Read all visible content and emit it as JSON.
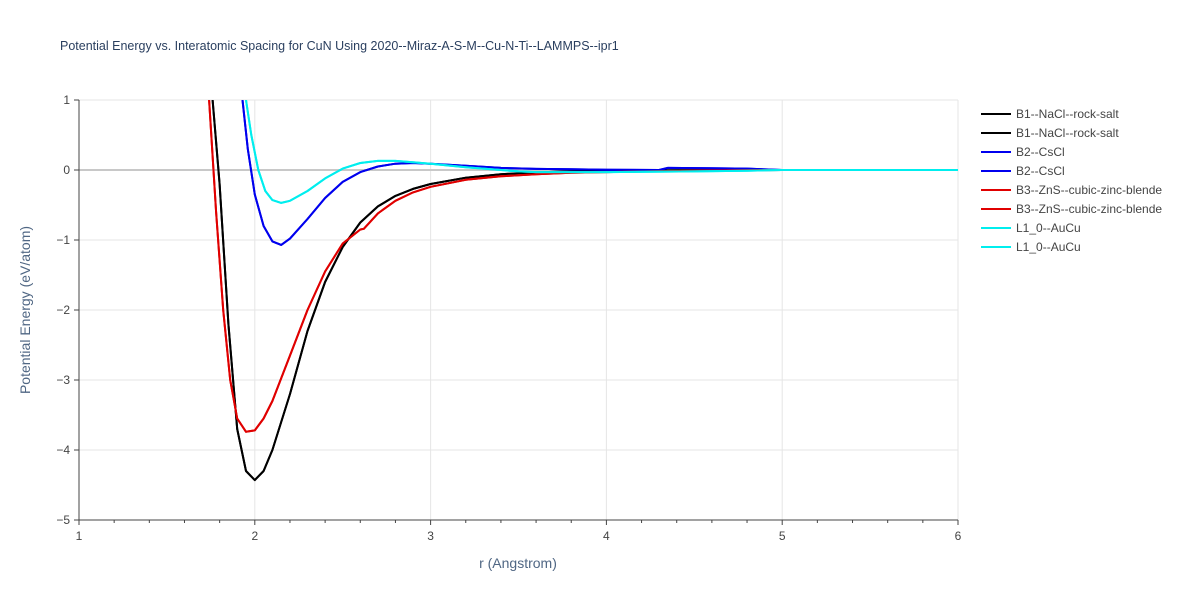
{
  "chart_data": {
    "type": "line",
    "title": "Potential Energy vs. Interatomic Spacing for CuN Using 2020--Miraz-A-S-M--Cu-N-Ti--LAMMPS--ipr1",
    "xlabel": "r (Angstrom)",
    "ylabel": "Potential Energy (eV/atom)",
    "xlim": [
      1,
      6
    ],
    "ylim": [
      -5,
      1
    ],
    "xticks": [
      1,
      2,
      3,
      4,
      5,
      6
    ],
    "xtick_labels": [
      "1",
      "2",
      "3",
      "4",
      "5",
      "6"
    ],
    "yticks": [
      -5,
      -4,
      -3,
      -2,
      -1,
      0,
      1
    ],
    "ytick_labels": [
      "−5",
      "−4",
      "−3",
      "−2",
      "−1",
      "0",
      "1"
    ],
    "grid": true,
    "legend_position": "right",
    "series": [
      {
        "name": "B1--NaCl--rock-salt",
        "color": "#000000",
        "x": [
          1.76,
          1.8,
          1.85,
          1.9,
          1.95,
          2.0,
          2.05,
          2.1,
          2.15,
          2.2,
          2.3,
          2.4,
          2.5,
          2.6,
          2.7,
          2.8,
          2.9,
          3.0,
          3.2,
          3.4,
          3.6,
          3.8,
          4.0,
          4.2,
          4.5,
          4.8,
          5.0
        ],
        "y": [
          1.0,
          -0.2,
          -2.2,
          -3.7,
          -4.3,
          -4.43,
          -4.3,
          -4.0,
          -3.6,
          -3.2,
          -2.3,
          -1.6,
          -1.1,
          -0.75,
          -0.52,
          -0.37,
          -0.27,
          -0.2,
          -0.11,
          -0.06,
          -0.035,
          -0.02,
          -0.012,
          -0.007,
          -0.003,
          -0.001,
          0.0
        ]
      },
      {
        "name": "B1--NaCl--rock-salt",
        "color": "#000000",
        "x": [
          1.76,
          1.8,
          1.85,
          1.9,
          1.95,
          2.0,
          2.05,
          2.1,
          2.15,
          2.2,
          2.3,
          2.4,
          2.5,
          2.6,
          2.7,
          2.8,
          2.9,
          3.0,
          3.2,
          3.4,
          3.6,
          3.8,
          4.0,
          4.2,
          4.5,
          4.8,
          5.0
        ],
        "y": [
          1.0,
          -0.2,
          -2.2,
          -3.7,
          -4.3,
          -4.43,
          -4.3,
          -4.0,
          -3.6,
          -3.2,
          -2.3,
          -1.6,
          -1.1,
          -0.75,
          -0.52,
          -0.37,
          -0.27,
          -0.2,
          -0.11,
          -0.06,
          -0.035,
          -0.02,
          -0.012,
          -0.007,
          -0.003,
          -0.001,
          0.0
        ]
      },
      {
        "name": "B2--CsCl",
        "color": "#0000ee",
        "x": [
          1.93,
          1.96,
          2.0,
          2.05,
          2.1,
          2.15,
          2.2,
          2.3,
          2.4,
          2.5,
          2.6,
          2.7,
          2.8,
          2.9,
          3.0,
          3.2,
          3.4,
          3.6,
          3.8,
          4.0,
          4.3,
          4.35,
          4.6,
          4.8,
          5.0
        ],
        "y": [
          1.0,
          0.3,
          -0.35,
          -0.8,
          -1.02,
          -1.07,
          -0.98,
          -0.7,
          -0.4,
          -0.17,
          -0.03,
          0.05,
          0.09,
          0.1,
          0.09,
          0.06,
          0.03,
          0.015,
          0.01,
          0.005,
          0.0,
          0.03,
          0.025,
          0.02,
          0.0
        ]
      },
      {
        "name": "B2--CsCl",
        "color": "#0000ee",
        "x": [
          1.93,
          1.96,
          2.0,
          2.05,
          2.1,
          2.15,
          2.2,
          2.3,
          2.4,
          2.5,
          2.6,
          2.7,
          2.8,
          2.9,
          3.0,
          3.2,
          3.4,
          3.6,
          3.8,
          4.0,
          4.3,
          4.35,
          4.6,
          4.8,
          5.0
        ],
        "y": [
          1.0,
          0.3,
          -0.35,
          -0.8,
          -1.02,
          -1.07,
          -0.98,
          -0.7,
          -0.4,
          -0.17,
          -0.03,
          0.05,
          0.09,
          0.1,
          0.09,
          0.06,
          0.03,
          0.015,
          0.01,
          0.005,
          0.0,
          0.03,
          0.025,
          0.02,
          0.0
        ]
      },
      {
        "name": "B3--ZnS--cubic-zinc-blende",
        "color": "#e00000",
        "x": [
          1.74,
          1.78,
          1.82,
          1.86,
          1.9,
          1.95,
          2.0,
          2.05,
          2.1,
          2.2,
          2.3,
          2.4,
          2.5,
          2.6,
          2.62,
          2.7,
          2.8,
          2.9,
          3.0,
          3.2,
          3.4,
          3.6,
          3.8,
          4.0,
          4.5,
          5.0
        ],
        "y": [
          1.0,
          -0.6,
          -2.0,
          -3.0,
          -3.55,
          -3.74,
          -3.72,
          -3.55,
          -3.3,
          -2.65,
          -2.0,
          -1.45,
          -1.05,
          -0.85,
          -0.84,
          -0.62,
          -0.44,
          -0.32,
          -0.24,
          -0.14,
          -0.09,
          -0.06,
          -0.04,
          -0.03,
          -0.01,
          0.0
        ]
      },
      {
        "name": "B3--ZnS--cubic-zinc-blende",
        "color": "#e00000",
        "x": [
          1.74,
          1.78,
          1.82,
          1.86,
          1.9,
          1.95,
          2.0,
          2.05,
          2.1,
          2.2,
          2.3,
          2.4,
          2.5,
          2.6,
          2.62,
          2.7,
          2.8,
          2.9,
          3.0,
          3.2,
          3.4,
          3.6,
          3.8,
          4.0,
          4.5,
          5.0
        ],
        "y": [
          1.0,
          -0.6,
          -2.0,
          -3.0,
          -3.55,
          -3.74,
          -3.72,
          -3.55,
          -3.3,
          -2.65,
          -2.0,
          -1.45,
          -1.05,
          -0.85,
          -0.84,
          -0.62,
          -0.44,
          -0.32,
          -0.24,
          -0.14,
          -0.09,
          -0.06,
          -0.04,
          -0.03,
          -0.01,
          0.0
        ]
      },
      {
        "name": "L1_0--AuCu",
        "color": "#00eeee",
        "x": [
          1.95,
          1.98,
          2.02,
          2.06,
          2.1,
          2.15,
          2.2,
          2.3,
          2.4,
          2.5,
          2.6,
          2.7,
          2.8,
          2.9,
          3.0,
          3.2,
          3.4,
          3.5,
          3.6,
          3.8,
          4.0,
          4.5,
          4.8,
          5.0,
          6.0
        ],
        "y": [
          1.0,
          0.5,
          0.0,
          -0.3,
          -0.43,
          -0.47,
          -0.44,
          -0.3,
          -0.12,
          0.02,
          0.1,
          0.13,
          0.13,
          0.11,
          0.09,
          0.04,
          0.0,
          -0.02,
          -0.03,
          -0.03,
          -0.03,
          -0.02,
          -0.01,
          0.0,
          0.0
        ]
      },
      {
        "name": "L1_0--AuCu",
        "color": "#00eeee",
        "x": [
          1.95,
          1.98,
          2.02,
          2.06,
          2.1,
          2.15,
          2.2,
          2.3,
          2.4,
          2.5,
          2.6,
          2.7,
          2.8,
          2.9,
          3.0,
          3.2,
          3.4,
          3.5,
          3.6,
          3.8,
          4.0,
          4.5,
          4.8,
          5.0,
          6.0
        ],
        "y": [
          1.0,
          0.5,
          0.0,
          -0.3,
          -0.43,
          -0.47,
          -0.44,
          -0.3,
          -0.12,
          0.02,
          0.1,
          0.13,
          0.13,
          0.11,
          0.09,
          0.04,
          0.0,
          -0.02,
          -0.03,
          -0.03,
          -0.03,
          -0.02,
          -0.01,
          0.0,
          0.0
        ]
      }
    ]
  }
}
